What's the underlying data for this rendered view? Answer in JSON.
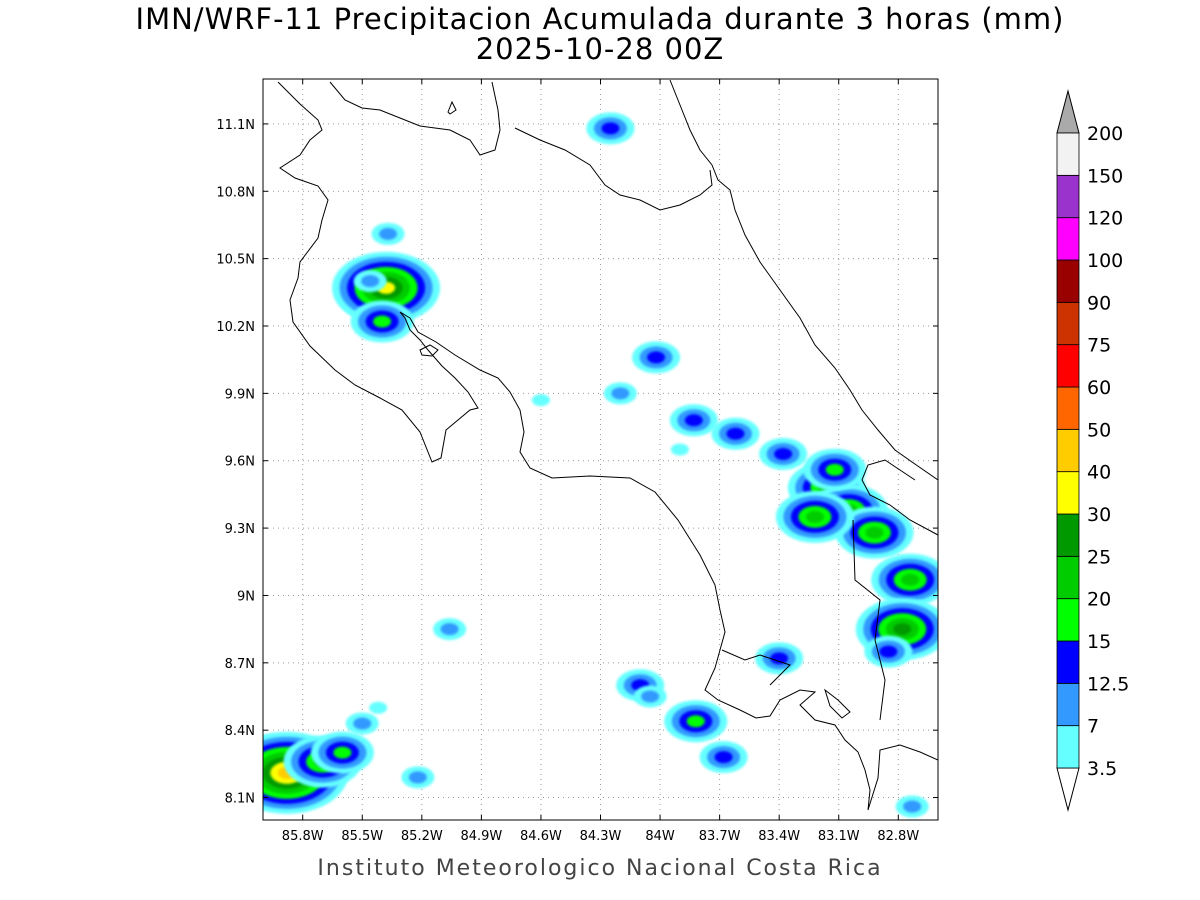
{
  "title": {
    "line1": "IMN/WRF-11 Precipitacion Acumulada durante 3 horas (mm)",
    "line2": "2025-10-28 00Z"
  },
  "footer": "Instituto Meteorologico Nacional Costa Rica",
  "map": {
    "lon_range": [
      -86.0,
      -82.6
    ],
    "lat_range": [
      8.0,
      11.3
    ],
    "lat_ticks": [
      {
        "value": 11.1,
        "label": "11.1N"
      },
      {
        "value": 10.8,
        "label": "10.8N"
      },
      {
        "value": 10.5,
        "label": "10.5N"
      },
      {
        "value": 10.2,
        "label": "10.2N"
      },
      {
        "value": 9.9,
        "label": "9.9N"
      },
      {
        "value": 9.6,
        "label": "9.6N"
      },
      {
        "value": 9.3,
        "label": "9.3N"
      },
      {
        "value": 9.0,
        "label": "9N"
      },
      {
        "value": 8.7,
        "label": "8.7N"
      },
      {
        "value": 8.4,
        "label": "8.4N"
      },
      {
        "value": 8.1,
        "label": "8.1N"
      }
    ],
    "lon_ticks": [
      {
        "value": -85.8,
        "label": "85.8W"
      },
      {
        "value": -85.5,
        "label": "85.5W"
      },
      {
        "value": -85.2,
        "label": "85.2W"
      },
      {
        "value": -84.9,
        "label": "84.9W"
      },
      {
        "value": -84.6,
        "label": "84.6W"
      },
      {
        "value": -84.3,
        "label": "84.3W"
      },
      {
        "value": -84.0,
        "label": "84W"
      },
      {
        "value": -83.7,
        "label": "83.7W"
      },
      {
        "value": -83.4,
        "label": "83.4W"
      },
      {
        "value": -83.1,
        "label": "83.1W"
      },
      {
        "value": -82.8,
        "label": "82.8W"
      }
    ],
    "grid": true
  },
  "colorbar": {
    "units": "mm",
    "labels": [
      "3.5",
      "7",
      "12.5",
      "15",
      "20",
      "25",
      "30",
      "40",
      "50",
      "60",
      "75",
      "90",
      "100",
      "120",
      "150",
      "200"
    ],
    "colors": [
      "#66ffff",
      "#3399ff",
      "#0000ff",
      "#00ff00",
      "#00cc00",
      "#009900",
      "#ffff00",
      "#ffcc00",
      "#ff6600",
      "#ff0000",
      "#cc3300",
      "#990000",
      "#ff00ff",
      "#9933cc",
      "#f2f2f2",
      "#aaaaaa"
    ]
  },
  "precip_cells": [
    {
      "lon": -85.93,
      "lat": 8.22,
      "level": 6
    },
    {
      "lon": -85.88,
      "lat": 8.21,
      "level": 7
    },
    {
      "lon": -85.7,
      "lat": 8.26,
      "level": 4
    },
    {
      "lon": -85.6,
      "lat": 8.3,
      "level": 3
    },
    {
      "lon": -85.5,
      "lat": 8.43,
      "level": 1
    },
    {
      "lon": -85.42,
      "lat": 8.5,
      "level": 0
    },
    {
      "lon": -85.22,
      "lat": 8.19,
      "level": 1
    },
    {
      "lon": -85.4,
      "lat": 10.35,
      "level": 5
    },
    {
      "lon": -85.38,
      "lat": 10.37,
      "level": 6
    },
    {
      "lon": -85.4,
      "lat": 10.22,
      "level": 3
    },
    {
      "lon": -85.46,
      "lat": 10.4,
      "level": 1
    },
    {
      "lon": -85.37,
      "lat": 10.61,
      "level": 1
    },
    {
      "lon": -84.1,
      "lat": 8.6,
      "level": 2
    },
    {
      "lon": -84.05,
      "lat": 8.55,
      "level": 1
    },
    {
      "lon": -83.82,
      "lat": 8.44,
      "level": 3
    },
    {
      "lon": -83.68,
      "lat": 8.28,
      "level": 2
    },
    {
      "lon": -84.02,
      "lat": 10.06,
      "level": 2
    },
    {
      "lon": -83.83,
      "lat": 9.78,
      "level": 2
    },
    {
      "lon": -83.62,
      "lat": 9.72,
      "level": 2
    },
    {
      "lon": -83.38,
      "lat": 9.63,
      "level": 2
    },
    {
      "lon": -83.16,
      "lat": 9.48,
      "level": 4
    },
    {
      "lon": -83.05,
      "lat": 9.38,
      "level": 4
    },
    {
      "lon": -82.92,
      "lat": 9.28,
      "level": 4
    },
    {
      "lon": -83.22,
      "lat": 9.35,
      "level": 4
    },
    {
      "lon": -82.74,
      "lat": 9.07,
      "level": 4
    },
    {
      "lon": -82.78,
      "lat": 8.85,
      "level": 5
    },
    {
      "lon": -82.85,
      "lat": 8.75,
      "level": 2
    },
    {
      "lon": -83.12,
      "lat": 9.56,
      "level": 3
    },
    {
      "lon": -83.4,
      "lat": 8.72,
      "level": 2
    },
    {
      "lon": -84.6,
      "lat": 9.87,
      "level": 0
    },
    {
      "lon": -84.2,
      "lat": 9.9,
      "level": 1
    },
    {
      "lon": -83.9,
      "lat": 9.65,
      "level": 0
    },
    {
      "lon": -84.25,
      "lat": 11.08,
      "level": 2
    },
    {
      "lon": -85.06,
      "lat": 8.85,
      "level": 1
    },
    {
      "lon": -82.73,
      "lat": 8.06,
      "level": 1
    }
  ]
}
